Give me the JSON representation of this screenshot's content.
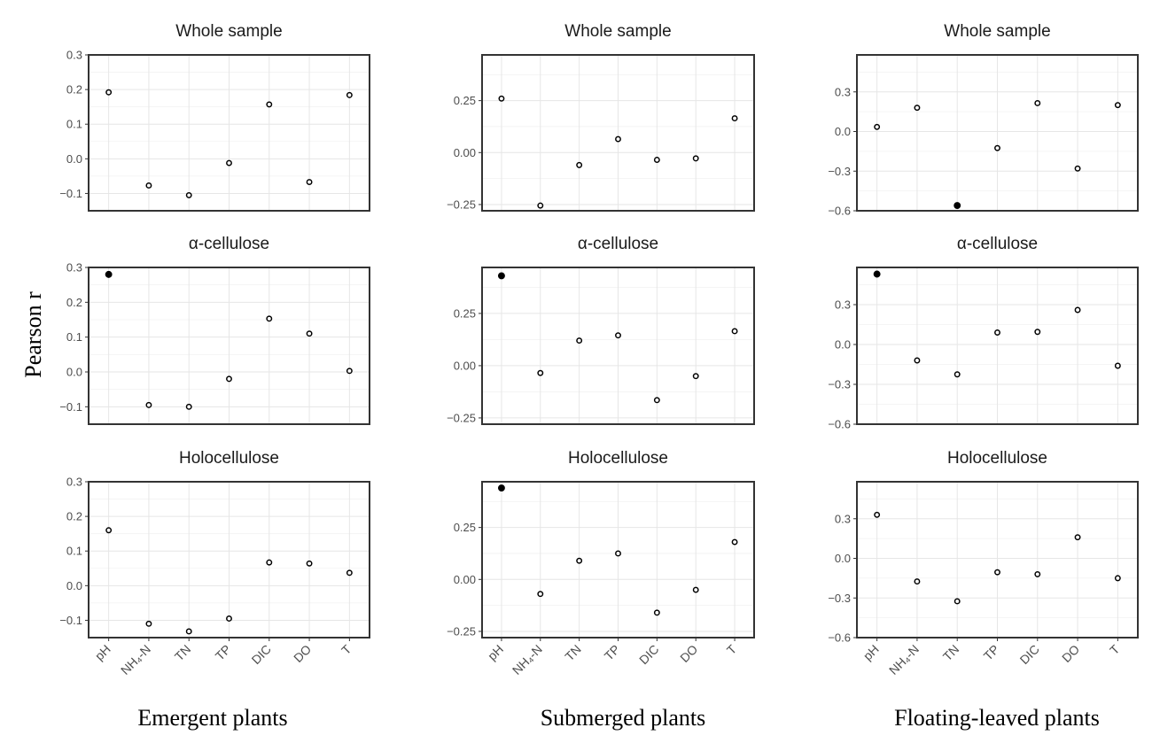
{
  "figure": {
    "y_axis_label": "Pearson r",
    "column_titles": [
      "Emergent plants",
      "Submerged plants",
      "Floating-leaved plants"
    ],
    "row_titles": [
      "Whole sample",
      "α-cellulose",
      "Holocellulose"
    ],
    "x_tick_labels": [
      "pH",
      "NH₄-N",
      "TN",
      "TP",
      "DIC",
      "DO",
      "T"
    ]
  },
  "chart_data": [
    {
      "type": "scatter",
      "title": "Whole sample",
      "group": "Emergent plants",
      "categories": [
        "pH",
        "NH₄-N",
        "TN",
        "TP",
        "DIC",
        "DO",
        "T"
      ],
      "values": [
        0.192,
        -0.077,
        -0.105,
        -0.012,
        0.157,
        -0.067,
        0.184
      ],
      "significant": [
        false,
        false,
        false,
        false,
        false,
        false,
        false
      ],
      "ylim": [
        -0.15,
        0.3
      ],
      "yticks": [
        -0.1,
        0.0,
        0.1,
        0.2,
        0.3
      ],
      "ytick_labels": [
        "−0.1",
        "0.0",
        "0.1",
        "0.2",
        "0.3"
      ]
    },
    {
      "type": "scatter",
      "title": "Whole sample",
      "group": "Submerged plants",
      "categories": [
        "pH",
        "NH₄-N",
        "TN",
        "TP",
        "DIC",
        "DO",
        "T"
      ],
      "values": [
        0.26,
        -0.255,
        -0.06,
        0.065,
        -0.035,
        -0.028,
        0.165
      ],
      "significant": [
        false,
        false,
        false,
        false,
        false,
        false,
        false
      ],
      "ylim": [
        -0.28,
        0.47
      ],
      "yticks": [
        -0.25,
        0.0,
        0.25
      ],
      "ytick_labels": [
        "−0.25",
        "0.00",
        "0.25"
      ]
    },
    {
      "type": "scatter",
      "title": "Whole sample",
      "group": "Floating-leaved plants",
      "categories": [
        "pH",
        "NH₄-N",
        "TN",
        "TP",
        "DIC",
        "DO",
        "T"
      ],
      "values": [
        0.035,
        0.18,
        -0.56,
        -0.125,
        0.215,
        -0.28,
        0.2
      ],
      "significant": [
        false,
        false,
        true,
        false,
        false,
        false,
        false
      ],
      "ylim": [
        -0.6,
        0.58
      ],
      "yticks": [
        -0.6,
        -0.3,
        0.0,
        0.3
      ],
      "ytick_labels": [
        "−0.6",
        "−0.3",
        "0.0",
        "0.3"
      ]
    },
    {
      "type": "scatter",
      "title": "α-cellulose",
      "group": "Emergent plants",
      "categories": [
        "pH",
        "NH₄-N",
        "TN",
        "TP",
        "DIC",
        "DO",
        "T"
      ],
      "values": [
        0.28,
        -0.095,
        -0.1,
        -0.02,
        0.153,
        0.11,
        0.003
      ],
      "significant": [
        true,
        false,
        false,
        false,
        false,
        false,
        false
      ],
      "ylim": [
        -0.15,
        0.3
      ],
      "yticks": [
        -0.1,
        0.0,
        0.1,
        0.2,
        0.3
      ],
      "ytick_labels": [
        "−0.1",
        "0.0",
        "0.1",
        "0.2",
        "0.3"
      ]
    },
    {
      "type": "scatter",
      "title": "α-cellulose",
      "group": "Submerged plants",
      "categories": [
        "pH",
        "NH₄-N",
        "TN",
        "TP",
        "DIC",
        "DO",
        "T"
      ],
      "values": [
        0.43,
        -0.035,
        0.12,
        0.145,
        -0.165,
        -0.05,
        0.165
      ],
      "significant": [
        true,
        false,
        false,
        false,
        false,
        false,
        false
      ],
      "ylim": [
        -0.28,
        0.47
      ],
      "yticks": [
        -0.25,
        0.0,
        0.25
      ],
      "ytick_labels": [
        "−0.25",
        "0.00",
        "0.25"
      ]
    },
    {
      "type": "scatter",
      "title": "α-cellulose",
      "group": "Floating-leaved plants",
      "categories": [
        "pH",
        "NH₄-N",
        "TN",
        "TP",
        "DIC",
        "DO",
        "T"
      ],
      "values": [
        0.53,
        -0.12,
        -0.225,
        0.09,
        0.095,
        0.26,
        -0.16
      ],
      "significant": [
        true,
        false,
        false,
        false,
        false,
        false,
        false
      ],
      "ylim": [
        -0.6,
        0.58
      ],
      "yticks": [
        -0.6,
        -0.3,
        0.0,
        0.3
      ],
      "ytick_labels": [
        "−0.6",
        "−0.3",
        "0.0",
        "0.3"
      ]
    },
    {
      "type": "scatter",
      "title": "Holocellulose",
      "group": "Emergent plants",
      "categories": [
        "pH",
        "NH₄-N",
        "TN",
        "TP",
        "DIC",
        "DO",
        "T"
      ],
      "values": [
        0.16,
        -0.11,
        -0.132,
        -0.095,
        0.067,
        0.064,
        0.037
      ],
      "significant": [
        false,
        false,
        false,
        false,
        false,
        false,
        false
      ],
      "ylim": [
        -0.15,
        0.3
      ],
      "yticks": [
        -0.1,
        0.0,
        0.1,
        0.2,
        0.3
      ],
      "ytick_labels": [
        "−0.1",
        "0.0",
        "0.1",
        "0.2",
        "0.3"
      ]
    },
    {
      "type": "scatter",
      "title": "Holocellulose",
      "group": "Submerged plants",
      "categories": [
        "pH",
        "NH₄-N",
        "TN",
        "TP",
        "DIC",
        "DO",
        "T"
      ],
      "values": [
        0.44,
        -0.07,
        0.09,
        0.125,
        -0.16,
        -0.05,
        0.18
      ],
      "significant": [
        true,
        false,
        false,
        false,
        false,
        false,
        false
      ],
      "ylim": [
        -0.28,
        0.47
      ],
      "yticks": [
        -0.25,
        0.0,
        0.25
      ],
      "ytick_labels": [
        "−0.25",
        "0.00",
        "0.25"
      ]
    },
    {
      "type": "scatter",
      "title": "Holocellulose",
      "group": "Floating-leaved plants",
      "categories": [
        "pH",
        "NH₄-N",
        "TN",
        "TP",
        "DIC",
        "DO",
        "T"
      ],
      "values": [
        0.33,
        -0.175,
        -0.325,
        -0.105,
        -0.12,
        0.16,
        -0.15
      ],
      "significant": [
        false,
        false,
        false,
        false,
        false,
        false,
        false
      ],
      "ylim": [
        -0.6,
        0.58
      ],
      "yticks": [
        -0.6,
        -0.3,
        0.0,
        0.3
      ],
      "ytick_labels": [
        "−0.6",
        "−0.3",
        "0.0",
        "0.3"
      ]
    }
  ]
}
